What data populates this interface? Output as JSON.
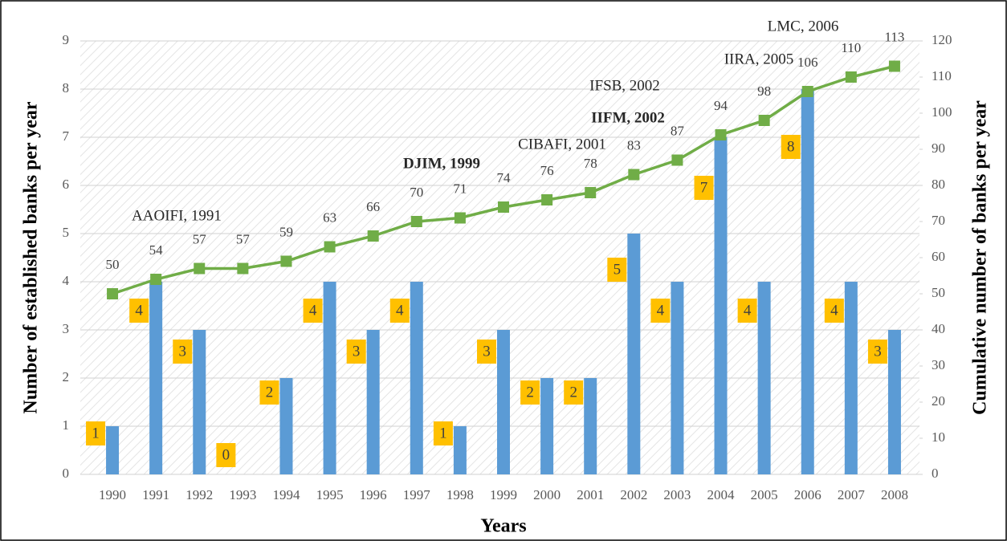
{
  "chart_data": {
    "type": "bar-line",
    "x_label": "Years",
    "y_label": "Number of  established banks per year",
    "y2_label": "Cumulative number of  banks per year",
    "categories": [
      "1990",
      "1991",
      "1992",
      "1993",
      "1994",
      "1995",
      "1996",
      "1997",
      "1998",
      "1999",
      "2000",
      "2001",
      "2002",
      "2003",
      "2004",
      "2005",
      "2006",
      "2007",
      "2008"
    ],
    "series": [
      {
        "type": "bar",
        "color": "#5b9bd5",
        "label_color": "#ffc000",
        "values": [
          1,
          4,
          3,
          0,
          2,
          4,
          3,
          4,
          1,
          3,
          2,
          2,
          5,
          4,
          7,
          4,
          8,
          4,
          3
        ]
      },
      {
        "type": "line",
        "axis": "y2",
        "color": "#70ad47",
        "values": [
          50,
          54,
          57,
          57,
          59,
          63,
          66,
          70,
          71,
          74,
          76,
          78,
          83,
          87,
          94,
          98,
          106,
          110,
          113
        ]
      }
    ],
    "ylim": [
      0,
      9
    ],
    "yticks": [
      0,
      1,
      2,
      3,
      4,
      5,
      6,
      7,
      8,
      9
    ],
    "y2lim": [
      0,
      120
    ],
    "y2ticks": [
      0,
      10,
      20,
      30,
      40,
      50,
      60,
      70,
      80,
      90,
      100,
      110,
      120
    ],
    "grid": true,
    "annotations": [
      "AAOIFI, 1991",
      "DJIM, 1999",
      "CIBAFI, 2001",
      "IFSB, 2002",
      "IIFM, 2002",
      "IIRA, 2005",
      "LMC, 2006"
    ]
  }
}
